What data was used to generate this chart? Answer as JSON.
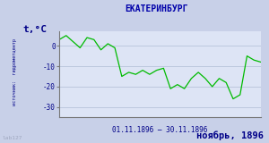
{
  "title": "ЕКАТЕРИНБУРГ",
  "ylabel": "t,°C",
  "xlabel_range": "01.11.1896 – 30.11.1896",
  "footer": "ноябрь, 1896",
  "watermark": "lab127",
  "source_text": "источник:  гидрометцентр",
  "bg_color": "#c8d0e8",
  "plot_bg_color": "#dde4f5",
  "line_color": "#00bb00",
  "title_color": "#0000aa",
  "axis_label_color": "#000088",
  "footer_color": "#000088",
  "watermark_color": "#a0a8c0",
  "grid_color": "#b0bcd4",
  "ylim": [
    -35,
    7
  ],
  "yticks": [
    0,
    -10,
    -20,
    -30
  ],
  "days": [
    1,
    2,
    3,
    4,
    5,
    6,
    7,
    8,
    9,
    10,
    11,
    12,
    13,
    14,
    15,
    16,
    17,
    18,
    19,
    20,
    21,
    22,
    23,
    24,
    25,
    26,
    27,
    28,
    29,
    30
  ],
  "temps": [
    3,
    5,
    2,
    -1,
    4,
    3,
    -2,
    1,
    -1,
    -15,
    -13,
    -14,
    -12,
    -14,
    -12,
    -11,
    -21,
    -19,
    -21,
    -16,
    -13,
    -16,
    -20,
    -16,
    -18,
    -26,
    -24,
    -5,
    -7,
    -8
  ]
}
